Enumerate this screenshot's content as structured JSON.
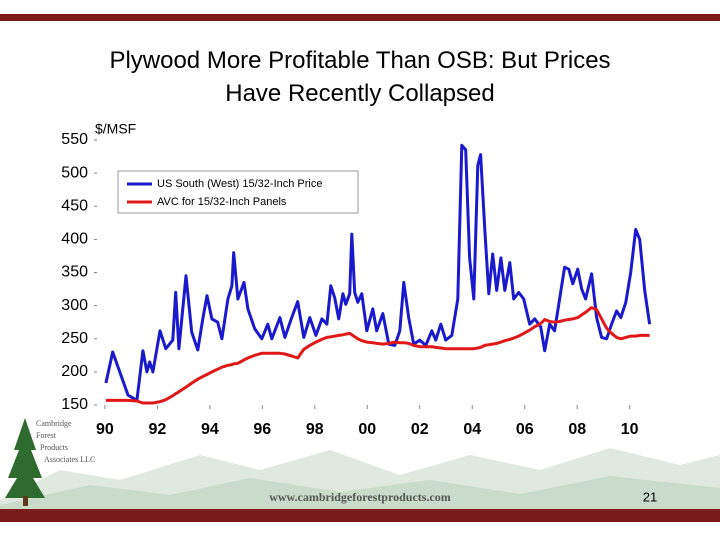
{
  "chart_data": {
    "type": "line",
    "title": "Plywood More Profitable Than OSB: But Prices Have Recently Collapsed",
    "y_label": "$/MSF",
    "x": [
      1990.04,
      1990.3,
      1990.88,
      1991.22,
      1991.45,
      1991.6,
      1991.71,
      1991.83,
      1992.1,
      1992.32,
      1992.59,
      1992.7,
      1992.82,
      1993.09,
      1993.31,
      1993.54,
      1993.73,
      1993.89,
      1994.08,
      1994.3,
      1994.46,
      1994.69,
      1994.84,
      1994.91,
      1995.07,
      1995.3,
      1995.45,
      1995.71,
      1995.98,
      1996.21,
      1996.36,
      1996.67,
      1996.86,
      1997.12,
      1997.35,
      1997.58,
      1997.81,
      1998.04,
      1998.27,
      1998.46,
      1998.61,
      1998.76,
      1998.91,
      1999.07,
      1999.18,
      1999.33,
      1999.41,
      1999.52,
      1999.64,
      1999.79,
      1999.98,
      2000.21,
      2000.36,
      2000.59,
      2000.82,
      2001.05,
      2001.24,
      2001.39,
      2001.58,
      2001.77,
      2002.0,
      2002.23,
      2002.46,
      2002.61,
      2002.8,
      2002.99,
      2003.22,
      2003.45,
      2003.6,
      2003.75,
      2003.9,
      2004.06,
      2004.21,
      2004.32,
      2004.48,
      2004.63,
      2004.78,
      2004.93,
      2005.09,
      2005.24,
      2005.43,
      2005.58,
      2005.77,
      2005.96,
      2006.19,
      2006.38,
      2006.61,
      2006.76,
      2006.95,
      2007.14,
      2007.33,
      2007.52,
      2007.68,
      2007.83,
      2008.02,
      2008.17,
      2008.32,
      2008.55,
      2008.74,
      2008.93,
      2009.12,
      2009.31,
      2009.5,
      2009.66,
      2009.85,
      2010.04,
      2010.23,
      2010.38,
      2010.57,
      2010.76
    ],
    "series": [
      {
        "name": "US South (West) 15/32-Inch Price",
        "color": "#1a1acc",
        "values": [
          183,
          230,
          165,
          157,
          232,
          200,
          215,
          200,
          262,
          235,
          248,
          320,
          235,
          345,
          260,
          233,
          280,
          315,
          280,
          275,
          250,
          310,
          330,
          380,
          310,
          335,
          295,
          265,
          250,
          272,
          250,
          282,
          252,
          282,
          306,
          252,
          282,
          255,
          280,
          272,
          330,
          312,
          280,
          318,
          302,
          318,
          408,
          320,
          305,
          318,
          262,
          295,
          262,
          288,
          242,
          240,
          262,
          335,
          282,
          242,
          248,
          240,
          262,
          248,
          272,
          248,
          255,
          310,
          542,
          535,
          372,
          310,
          512,
          528,
          415,
          318,
          378,
          323,
          372,
          323,
          365,
          310,
          320,
          310,
          272,
          280,
          268,
          232,
          272,
          262,
          310,
          358,
          355,
          333,
          355,
          325,
          310,
          348,
          282,
          252,
          250,
          272,
          292,
          282,
          305,
          350,
          415,
          400,
          323,
          272
        ]
      },
      {
        "name": "AVC for 15/32-Inch Panels",
        "color": "#e01818",
        "values": [
          157,
          157,
          157,
          156,
          153,
          153,
          153,
          153,
          155,
          158,
          164,
          167,
          170,
          177,
          183,
          189,
          193,
          196,
          200,
          204,
          207,
          210,
          211,
          212,
          213,
          218,
          221,
          225,
          228,
          228,
          228,
          228,
          227,
          224,
          221,
          234,
          240,
          245,
          249,
          252,
          253,
          254,
          255,
          256,
          257,
          258,
          256,
          253,
          250,
          247,
          245,
          244,
          243,
          242,
          243,
          245,
          244,
          244,
          243,
          240,
          238,
          238,
          238,
          237,
          236,
          235,
          235,
          235,
          235,
          235,
          235,
          235,
          236,
          237,
          240,
          241,
          242,
          243,
          245,
          247,
          249,
          251,
          254,
          258,
          263,
          268,
          273,
          279,
          276,
          275,
          276,
          278,
          279,
          280,
          282,
          286,
          290,
          297,
          294,
          280,
          266,
          258,
          252,
          250,
          252,
          254,
          254,
          255,
          255,
          255
        ]
      }
    ],
    "xlim": [
      1989.7,
      2010.85
    ],
    "xticks": [
      {
        "value": 1990,
        "label": "90"
      },
      {
        "value": 1992,
        "label": "92"
      },
      {
        "value": 1994,
        "label": "94"
      },
      {
        "value": 1996,
        "label": "96"
      },
      {
        "value": 1998,
        "label": "98"
      },
      {
        "value": 2000,
        "label": "00"
      },
      {
        "value": 2002,
        "label": "02"
      },
      {
        "value": 2004,
        "label": "04"
      },
      {
        "value": 2006,
        "label": "06"
      },
      {
        "value": 2008,
        "label": "08"
      },
      {
        "value": 2010,
        "label": "10"
      }
    ],
    "ylim": [
      150,
      550
    ],
    "yticks": [
      150,
      200,
      250,
      300,
      350,
      400,
      450,
      500,
      550
    ],
    "grid": false,
    "legend": "upper-left"
  },
  "footer": {
    "logo": [
      "Cambridge",
      "Forest",
      "Products",
      "Associates LLC"
    ],
    "url": "www.cambridgeforestproducts.com",
    "page": "21"
  }
}
